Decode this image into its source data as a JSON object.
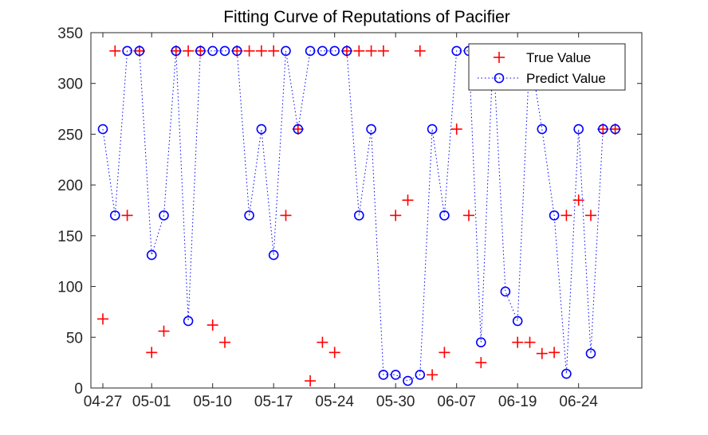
{
  "chart_data": {
    "type": "scatter",
    "title": "Fitting Curve of Reputations of Pacifier",
    "xlabel": "",
    "ylabel": "",
    "x_tick_labels": [
      "04-27",
      "05-01",
      "05-10",
      "05-17",
      "05-24",
      "05-30",
      "06-07",
      "06-19",
      "06-24"
    ],
    "x_tick_index": [
      0,
      4,
      9,
      14,
      19,
      24,
      29,
      34,
      39
    ],
    "xlim": [
      0,
      44
    ],
    "ylim": [
      0,
      350
    ],
    "y_ticks": [
      0,
      50,
      100,
      150,
      200,
      250,
      300,
      350
    ],
    "grid": false,
    "legend_position": "top-right",
    "series": [
      {
        "name": "True Value",
        "marker": "plus",
        "color": "#ff0000",
        "line": "none",
        "x": [
          0,
          1,
          2,
          3,
          4,
          5,
          6,
          7,
          8,
          9,
          10,
          11,
          12,
          13,
          14,
          15,
          16,
          17,
          18,
          19,
          20,
          21,
          22,
          23,
          24,
          25,
          26,
          27,
          28,
          29,
          30,
          31,
          32,
          33,
          34,
          35,
          36,
          37,
          38,
          39,
          40,
          41,
          42
        ],
        "y": [
          68,
          332,
          170,
          332,
          35,
          56,
          332,
          332,
          332,
          62,
          45,
          332,
          332,
          332,
          332,
          170,
          255,
          7,
          45,
          35,
          332,
          332,
          332,
          332,
          170,
          185,
          332,
          13,
          35,
          255,
          170,
          25,
          332,
          332,
          45,
          45,
          34,
          35,
          170,
          185,
          170,
          255,
          255
        ]
      },
      {
        "name": "Predict Value",
        "marker": "circle",
        "color": "#0000ff",
        "line": "dotted",
        "x": [
          0,
          1,
          2,
          3,
          4,
          5,
          6,
          7,
          8,
          9,
          10,
          11,
          12,
          13,
          14,
          15,
          16,
          17,
          18,
          19,
          20,
          21,
          22,
          23,
          24,
          25,
          26,
          27,
          28,
          29,
          30,
          31,
          32,
          33,
          34,
          35,
          36,
          37,
          38,
          39,
          40,
          41,
          42
        ],
        "y": [
          255,
          170,
          332,
          332,
          131,
          170,
          332,
          66,
          332,
          332,
          332,
          332,
          170,
          255,
          131,
          332,
          255,
          332,
          332,
          332,
          332,
          170,
          255,
          13,
          13,
          7,
          13,
          255,
          170,
          332,
          332,
          45,
          332,
          95,
          66,
          332,
          255,
          170,
          14,
          255,
          34,
          255,
          255
        ]
      }
    ]
  },
  "colors": {
    "true_value": "#ff0000",
    "predict_value": "#0000ff",
    "axes": "#262626"
  }
}
